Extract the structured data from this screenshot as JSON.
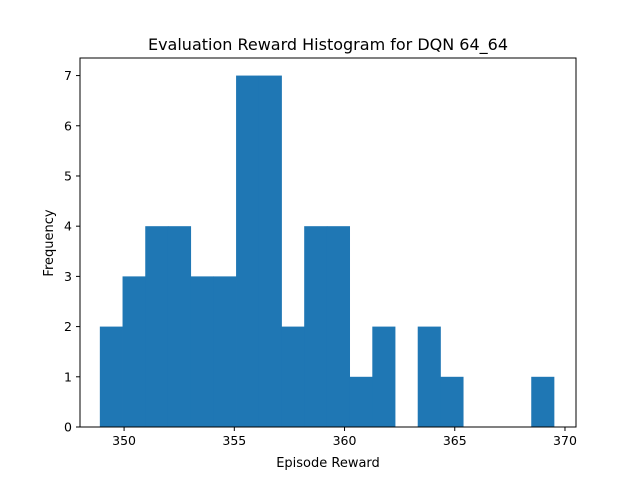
{
  "chart_data": {
    "type": "bar",
    "title": "Evaluation Reward Histogram for DQN 64_64",
    "xlabel": "Episode Reward",
    "ylabel": "Frequency",
    "xlim": [
      348.0,
      370.5
    ],
    "ylim": [
      0,
      7.35
    ],
    "x_ticks": [
      350,
      355,
      360,
      365,
      370
    ],
    "y_ticks": [
      0,
      1,
      2,
      3,
      4,
      5,
      6,
      7
    ],
    "bar_color": "#1f77b4",
    "bins": [
      {
        "left": 348.9,
        "right": 349.93,
        "count": 2
      },
      {
        "left": 349.93,
        "right": 350.96,
        "count": 3
      },
      {
        "left": 350.96,
        "right": 351.99,
        "count": 4
      },
      {
        "left": 351.99,
        "right": 353.02,
        "count": 4
      },
      {
        "left": 353.02,
        "right": 354.05,
        "count": 3
      },
      {
        "left": 354.05,
        "right": 355.08,
        "count": 3
      },
      {
        "left": 355.08,
        "right": 356.11,
        "count": 7
      },
      {
        "left": 356.11,
        "right": 357.14,
        "count": 7
      },
      {
        "left": 357.14,
        "right": 358.17,
        "count": 2
      },
      {
        "left": 358.17,
        "right": 359.2,
        "count": 4
      },
      {
        "left": 359.2,
        "right": 360.23,
        "count": 4
      },
      {
        "left": 360.23,
        "right": 361.26,
        "count": 1
      },
      {
        "left": 361.26,
        "right": 362.29,
        "count": 2
      },
      {
        "left": 362.29,
        "right": 363.32,
        "count": 0
      },
      {
        "left": 363.32,
        "right": 364.35,
        "count": 2
      },
      {
        "left": 364.35,
        "right": 365.38,
        "count": 1
      },
      {
        "left": 365.38,
        "right": 366.41,
        "count": 0
      },
      {
        "left": 366.41,
        "right": 367.44,
        "count": 0
      },
      {
        "left": 367.44,
        "right": 368.47,
        "count": 0
      },
      {
        "left": 368.47,
        "right": 369.5,
        "count": 1
      }
    ]
  }
}
